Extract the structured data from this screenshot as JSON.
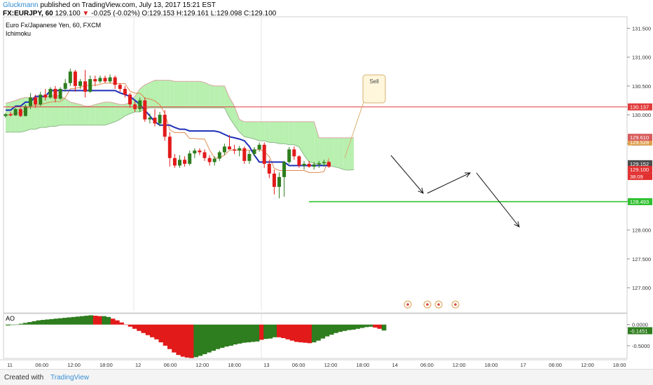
{
  "header": {
    "user": "Gluckmann",
    "published": "published on TradingView.com, July 13, 2017 15:21 EST",
    "symbol": "FX:EURJPY, 60",
    "last": "129.100",
    "change_arrow": "▼",
    "change": "-0.025 (-0.02%)",
    "ohlc": "O:129.153 H:129.161 L:129.098 C:129.100"
  },
  "legend": {
    "instrument": "Euro Fx/Japanese Yen, 60, FXCM",
    "indicator": "Ichimoku"
  },
  "footer": {
    "created": "Created with",
    "brand": "TradingView"
  },
  "colors": {
    "bull": "#2e7d1e",
    "bear": "#e21a1a",
    "base": "#1f2fb8",
    "conv": "#e08a50",
    "cloud_bull": "#b8f0b0",
    "cloud_bear": "#f6d2ce",
    "support": "#21c321",
    "resistance": "#e23b3b"
  },
  "chart_data": [
    {
      "type": "candlestick",
      "y_axis": {
        "ticks": [
          "131.500",
          "131.000",
          "130.500",
          "130.000",
          "129.500",
          "128.500",
          "128.000",
          "127.500",
          "127.000"
        ],
        "ylim": [
          126.6,
          131.7
        ]
      },
      "x_axis": {
        "ticks": [
          "11",
          "06:00",
          "12:00",
          "18:00",
          "12",
          "06:00",
          "12:00",
          "18:00",
          "13",
          "06:00",
          "12:00",
          "18:00",
          "14",
          "06:00",
          "12:00",
          "18:00",
          "17",
          "06:00",
          "12:00",
          "18:00"
        ]
      },
      "price_labels": {
        "resistance": "130.137",
        "cloud_top": "129.610",
        "last": "129.100",
        "last2": "38:09",
        "support": "128.493",
        "small1": "129.528",
        "small2": "129.152"
      },
      "annotation": "Sell",
      "ohlc": [
        [
          129.98,
          130.03,
          129.95,
          130.01
        ],
        [
          130.01,
          130.05,
          129.97,
          129.99
        ],
        [
          129.99,
          130.12,
          129.98,
          130.1
        ],
        [
          130.1,
          130.12,
          129.96,
          129.98
        ],
        [
          129.98,
          130.18,
          129.97,
          130.15
        ],
        [
          130.15,
          130.38,
          130.1,
          130.3
        ],
        [
          130.3,
          130.35,
          130.12,
          130.18
        ],
        [
          130.18,
          130.4,
          130.15,
          130.35
        ],
        [
          130.35,
          130.45,
          130.25,
          130.3
        ],
        [
          130.3,
          130.48,
          130.28,
          130.45
        ],
        [
          130.45,
          130.5,
          130.22,
          130.28
        ],
        [
          130.28,
          130.48,
          130.26,
          130.45
        ],
        [
          130.45,
          130.62,
          130.4,
          130.55
        ],
        [
          130.55,
          130.8,
          130.5,
          130.75
        ],
        [
          130.75,
          130.78,
          130.4,
          130.5
        ],
        [
          130.5,
          130.62,
          130.45,
          130.58
        ],
        [
          130.58,
          130.78,
          130.3,
          130.4
        ],
        [
          130.4,
          130.68,
          130.38,
          130.62
        ],
        [
          130.62,
          130.68,
          130.5,
          130.58
        ],
        [
          130.58,
          130.68,
          130.55,
          130.64
        ],
        [
          130.64,
          130.68,
          130.55,
          130.58
        ],
        [
          130.58,
          130.7,
          130.55,
          130.65
        ],
        [
          130.65,
          130.68,
          130.45,
          130.52
        ],
        [
          130.52,
          130.55,
          130.4,
          130.45
        ],
        [
          130.45,
          130.5,
          130.3,
          130.35
        ],
        [
          130.35,
          130.38,
          130.12,
          130.18
        ],
        [
          130.18,
          130.24,
          130.05,
          130.1
        ],
        [
          130.1,
          130.3,
          130.05,
          130.25
        ],
        [
          130.25,
          130.3,
          129.88,
          129.92
        ],
        [
          129.92,
          130.02,
          129.85,
          129.95
        ],
        [
          129.95,
          130.1,
          129.8,
          129.85
        ],
        [
          129.85,
          130.05,
          129.8,
          130.0
        ],
        [
          130.0,
          130.08,
          129.55,
          129.62
        ],
        [
          129.62,
          129.7,
          129.1,
          129.25
        ],
        [
          129.25,
          129.32,
          129.08,
          129.12
        ],
        [
          129.12,
          129.3,
          129.08,
          129.22
        ],
        [
          129.22,
          129.28,
          129.1,
          129.15
        ],
        [
          129.15,
          129.38,
          129.12,
          129.33
        ],
        [
          129.33,
          129.42,
          129.25,
          129.38
        ],
        [
          129.38,
          129.42,
          129.3,
          129.35
        ],
        [
          129.35,
          129.4,
          129.2,
          129.25
        ],
        [
          129.25,
          129.3,
          129.12,
          129.18
        ],
        [
          129.18,
          129.28,
          129.12,
          129.24
        ],
        [
          129.24,
          129.38,
          129.2,
          129.35
        ],
        [
          129.35,
          129.5,
          129.3,
          129.45
        ],
        [
          129.45,
          129.65,
          129.4,
          129.4
        ],
        [
          129.4,
          129.48,
          129.32,
          129.38
        ],
        [
          129.38,
          129.46,
          129.28,
          129.42
        ],
        [
          129.42,
          129.45,
          129.15,
          129.2
        ],
        [
          129.2,
          129.38,
          129.15,
          129.32
        ],
        [
          129.32,
          129.44,
          129.28,
          129.4
        ],
        [
          129.4,
          129.52,
          129.36,
          129.48
        ],
        [
          129.48,
          129.52,
          129.08,
          129.15
        ],
        [
          129.15,
          129.22,
          128.9,
          128.98
        ],
        [
          128.98,
          129.05,
          128.62,
          128.75
        ],
        [
          128.75,
          129.0,
          128.55,
          128.92
        ],
        [
          128.92,
          129.2,
          128.58,
          129.18
        ],
        [
          129.18,
          129.44,
          129.15,
          129.4
        ],
        [
          129.4,
          129.45,
          129.22,
          129.28
        ],
        [
          129.28,
          129.3,
          129.08,
          129.12
        ],
        [
          129.12,
          129.2,
          129.05,
          129.15
        ],
        [
          129.15,
          129.2,
          129.08,
          129.1
        ],
        [
          129.1,
          129.18,
          129.05,
          129.14
        ],
        [
          129.14,
          129.2,
          129.08,
          129.16
        ],
        [
          129.16,
          129.22,
          129.1,
          129.18
        ],
        [
          129.18,
          129.2,
          129.08,
          129.1
        ]
      ],
      "base_line": [
        130.08,
        130.08,
        130.15,
        130.15,
        130.22,
        130.22,
        130.32,
        130.32,
        130.32,
        130.42,
        130.42,
        130.42,
        130.42,
        130.42,
        130.42,
        130.42,
        130.42,
        130.42,
        130.42,
        130.42,
        130.42,
        130.42,
        130.42,
        130.38,
        130.35,
        130.32,
        130.25,
        130.18,
        130.08,
        129.98,
        129.88,
        129.82,
        129.82,
        129.82,
        129.78,
        129.75,
        129.75,
        129.72,
        129.72,
        129.72,
        129.72,
        129.72,
        129.72,
        129.7,
        129.66,
        129.62,
        129.6,
        129.58,
        129.55,
        129.45,
        129.3,
        129.18,
        129.18,
        129.18,
        129.18,
        129.18,
        129.18,
        129.12,
        129.12,
        129.12,
        129.12,
        129.12,
        129.12,
        129.12,
        129.12,
        129.12
      ],
      "cloud_top": [
        130.2,
        130.22,
        130.25,
        130.28,
        130.3,
        130.3,
        130.3,
        130.3,
        130.32,
        130.32,
        130.35,
        130.32,
        130.28,
        130.22,
        130.2,
        130.18,
        130.15,
        130.15,
        130.18,
        130.2,
        130.22,
        130.22,
        130.2,
        130.18,
        130.18,
        130.22,
        130.32,
        130.45,
        130.52,
        130.56,
        130.6,
        130.6,
        130.6,
        130.6,
        130.58,
        130.58,
        130.58,
        130.58,
        130.58,
        130.58,
        130.56,
        130.52,
        130.5,
        130.5,
        130.5,
        130.3,
        130.15,
        129.92,
        129.88,
        129.88,
        129.88,
        129.88,
        129.88,
        129.88,
        129.88,
        129.88,
        129.88,
        129.88,
        129.88,
        129.88,
        129.88,
        129.88,
        129.88,
        129.6,
        129.6,
        129.6,
        129.6,
        129.6,
        129.6,
        129.6,
        129.6
      ],
      "cloud_bottom": [
        129.7,
        129.7,
        129.7,
        129.7,
        129.72,
        129.75,
        129.75,
        129.78,
        129.78,
        129.8,
        129.8,
        129.82,
        129.82,
        129.82,
        129.82,
        129.82,
        129.82,
        129.82,
        129.82,
        129.82,
        129.82,
        129.85,
        129.88,
        129.92,
        129.98,
        130.02,
        130.05,
        130.05,
        130.1,
        130.12,
        130.12,
        130.12,
        130.12,
        130.12,
        130.12,
        130.12,
        130.12,
        130.12,
        130.12,
        130.12,
        130.12,
        130.12,
        130.12,
        130.12,
        130.12,
        129.95,
        129.82,
        129.7,
        129.62,
        129.6,
        129.58,
        129.55,
        129.55,
        129.52,
        129.52,
        129.5,
        129.5,
        129.48,
        129.48,
        129.44,
        129.3,
        129.18,
        129.16,
        129.14,
        129.12,
        129.12,
        129.1,
        129.08,
        129.05,
        129.04,
        129.05
      ]
    },
    {
      "type": "histogram",
      "indicator": "AO",
      "y_axis": {
        "ticks": [
          "0.0000",
          "-0.5000"
        ],
        "ylim": [
          -0.8,
          0.26
        ]
      },
      "last_label": "-0.1451",
      "values": [
        -0.02,
        -0.01,
        0.0,
        0.02,
        0.04,
        0.06,
        0.08,
        0.1,
        0.11,
        0.12,
        0.13,
        0.14,
        0.15,
        0.16,
        0.17,
        0.18,
        0.19,
        0.2,
        0.21,
        0.22,
        0.21,
        0.2,
        0.2,
        0.18,
        0.14,
        0.1,
        0.05,
        0.0,
        -0.05,
        -0.1,
        -0.15,
        -0.2,
        -0.25,
        -0.3,
        -0.35,
        -0.42,
        -0.5,
        -0.58,
        -0.66,
        -0.72,
        -0.76,
        -0.78,
        -0.79,
        -0.77,
        -0.74,
        -0.7,
        -0.66,
        -0.62,
        -0.58,
        -0.55,
        -0.52,
        -0.5,
        -0.47,
        -0.45,
        -0.43,
        -0.42,
        -0.41,
        -0.4,
        -0.36,
        -0.34,
        -0.33,
        -0.3,
        -0.3,
        -0.32,
        -0.35,
        -0.38,
        -0.41,
        -0.42,
        -0.43,
        -0.44,
        -0.42,
        -0.38,
        -0.33,
        -0.28,
        -0.24,
        -0.2,
        -0.17,
        -0.15,
        -0.13,
        -0.12,
        -0.1,
        -0.08,
        -0.06,
        -0.05,
        -0.07,
        -0.1,
        -0.14
      ],
      "colors": [
        "g",
        "g",
        "g",
        "g",
        "g",
        "g",
        "g",
        "g",
        "g",
        "g",
        "g",
        "g",
        "g",
        "g",
        "g",
        "g",
        "g",
        "g",
        "g",
        "g",
        "r",
        "r",
        "g",
        "g",
        "r",
        "r",
        "r",
        "r",
        "r",
        "r",
        "r",
        "r",
        "r",
        "r",
        "r",
        "r",
        "r",
        "r",
        "r",
        "r",
        "r",
        "r",
        "r",
        "g",
        "g",
        "g",
        "g",
        "g",
        "g",
        "g",
        "g",
        "g",
        "g",
        "g",
        "g",
        "g",
        "g",
        "g",
        "r",
        "g",
        "g",
        "g",
        "r",
        "r",
        "r",
        "r",
        "r",
        "r",
        "r",
        "r",
        "g",
        "g",
        "g",
        "g",
        "g",
        "g",
        "g",
        "g",
        "g",
        "g",
        "g",
        "g",
        "g",
        "g",
        "r",
        "r",
        "g"
      ]
    }
  ]
}
